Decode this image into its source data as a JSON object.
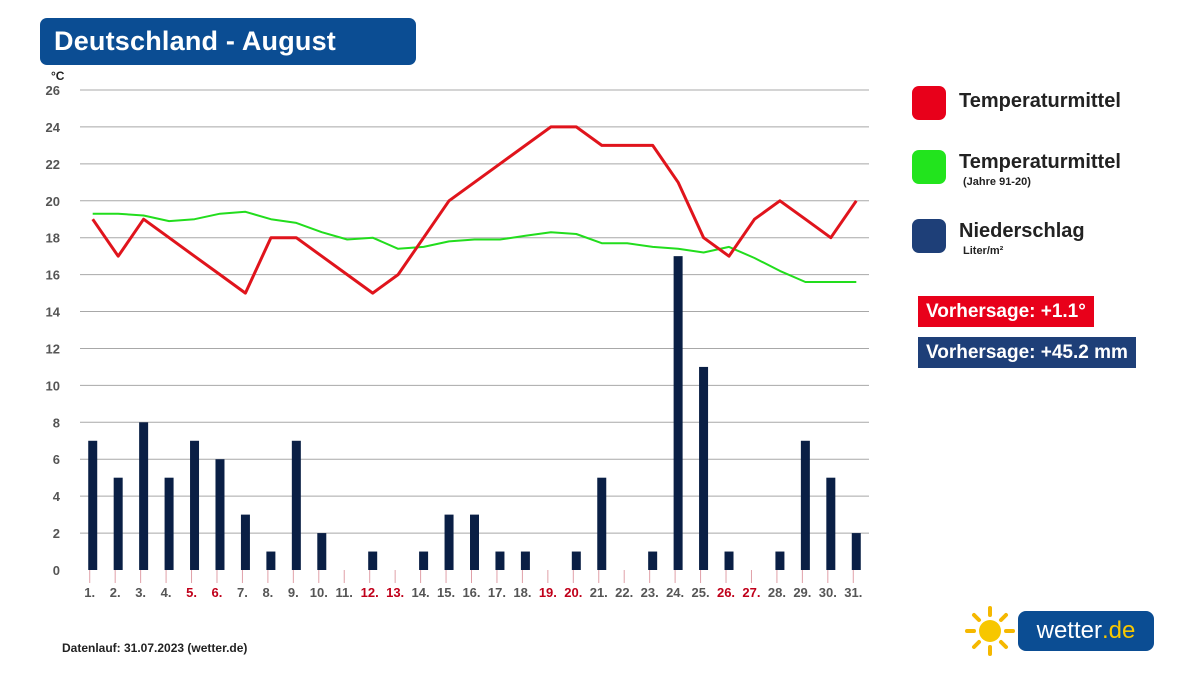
{
  "header": {
    "title": "Deutschland - August"
  },
  "legend": {
    "items": [
      {
        "label": "Temperaturmittel",
        "sub": "",
        "color": "#e8001a"
      },
      {
        "label": "Temperaturmittel",
        "sub": "(Jahre 91-20)",
        "color": "#22e41d"
      },
      {
        "label": "Niederschlag",
        "sub": "Liter/m²",
        "color": "#1e3f78"
      }
    ]
  },
  "forecasts": {
    "temperature": {
      "text": "Vorhersage: +1.1°",
      "color": "#e8001a"
    },
    "precipitation": {
      "text": "Vorhersage: +45.2 mm",
      "color": "#1e3f78"
    }
  },
  "footer": {
    "text": "Datenlauf: 31.07.2023 (wetter.de)"
  },
  "logo": {
    "name": "wetter",
    "tld": ".de"
  },
  "chart_data": {
    "type": "bar",
    "title": "Deutschland - August",
    "ylabel": "°C",
    "ylim": [
      0,
      26
    ],
    "yticks": [
      0,
      2,
      4,
      6,
      8,
      10,
      12,
      14,
      16,
      18,
      20,
      22,
      24,
      26
    ],
    "grid": true,
    "legend_position": "right",
    "categories": [
      "1.",
      "2.",
      "3.",
      "4.",
      "5.",
      "6.",
      "7.",
      "8.",
      "9.",
      "10.",
      "11.",
      "12.",
      "13.",
      "14.",
      "15.",
      "16.",
      "17.",
      "18.",
      "19.",
      "20.",
      "21.",
      "22.",
      "23.",
      "24.",
      "25.",
      "26.",
      "27.",
      "28.",
      "29.",
      "30.",
      "31."
    ],
    "weekend_days": [
      "5.",
      "6.",
      "12.",
      "13.",
      "19.",
      "20.",
      "26.",
      "27."
    ],
    "weekend_color": "#c0001a",
    "series": [
      {
        "name": "Niederschlag",
        "type": "bar",
        "color": "#0a1f45",
        "values": [
          7,
          5,
          8,
          5,
          7,
          6,
          3,
          1,
          7,
          2,
          0,
          1,
          0,
          1,
          3,
          3,
          1,
          1,
          0,
          1,
          5,
          0,
          1,
          17,
          11,
          1,
          0,
          1,
          7,
          5,
          2
        ]
      },
      {
        "name": "Temperaturmittel",
        "type": "line",
        "color": "#e0141c",
        "values": [
          19,
          17,
          19,
          18,
          17,
          16,
          15,
          18,
          18,
          17,
          16,
          15,
          16,
          18,
          20,
          21,
          22,
          23,
          24,
          24,
          23,
          23,
          23,
          21,
          18,
          17,
          19,
          20,
          19,
          18,
          20
        ]
      },
      {
        "name": "Temperaturmittel (Jahre 91-20)",
        "type": "line",
        "color": "#22dd1d",
        "values": [
          19.3,
          19.3,
          19.2,
          18.9,
          19.0,
          19.3,
          19.4,
          19.0,
          18.8,
          18.3,
          17.9,
          18.0,
          17.4,
          17.5,
          17.8,
          17.9,
          17.9,
          18.1,
          18.3,
          18.2,
          17.7,
          17.7,
          17.5,
          17.4,
          17.2,
          17.5,
          16.9,
          16.2,
          15.6,
          15.6,
          15.6
        ]
      }
    ]
  }
}
